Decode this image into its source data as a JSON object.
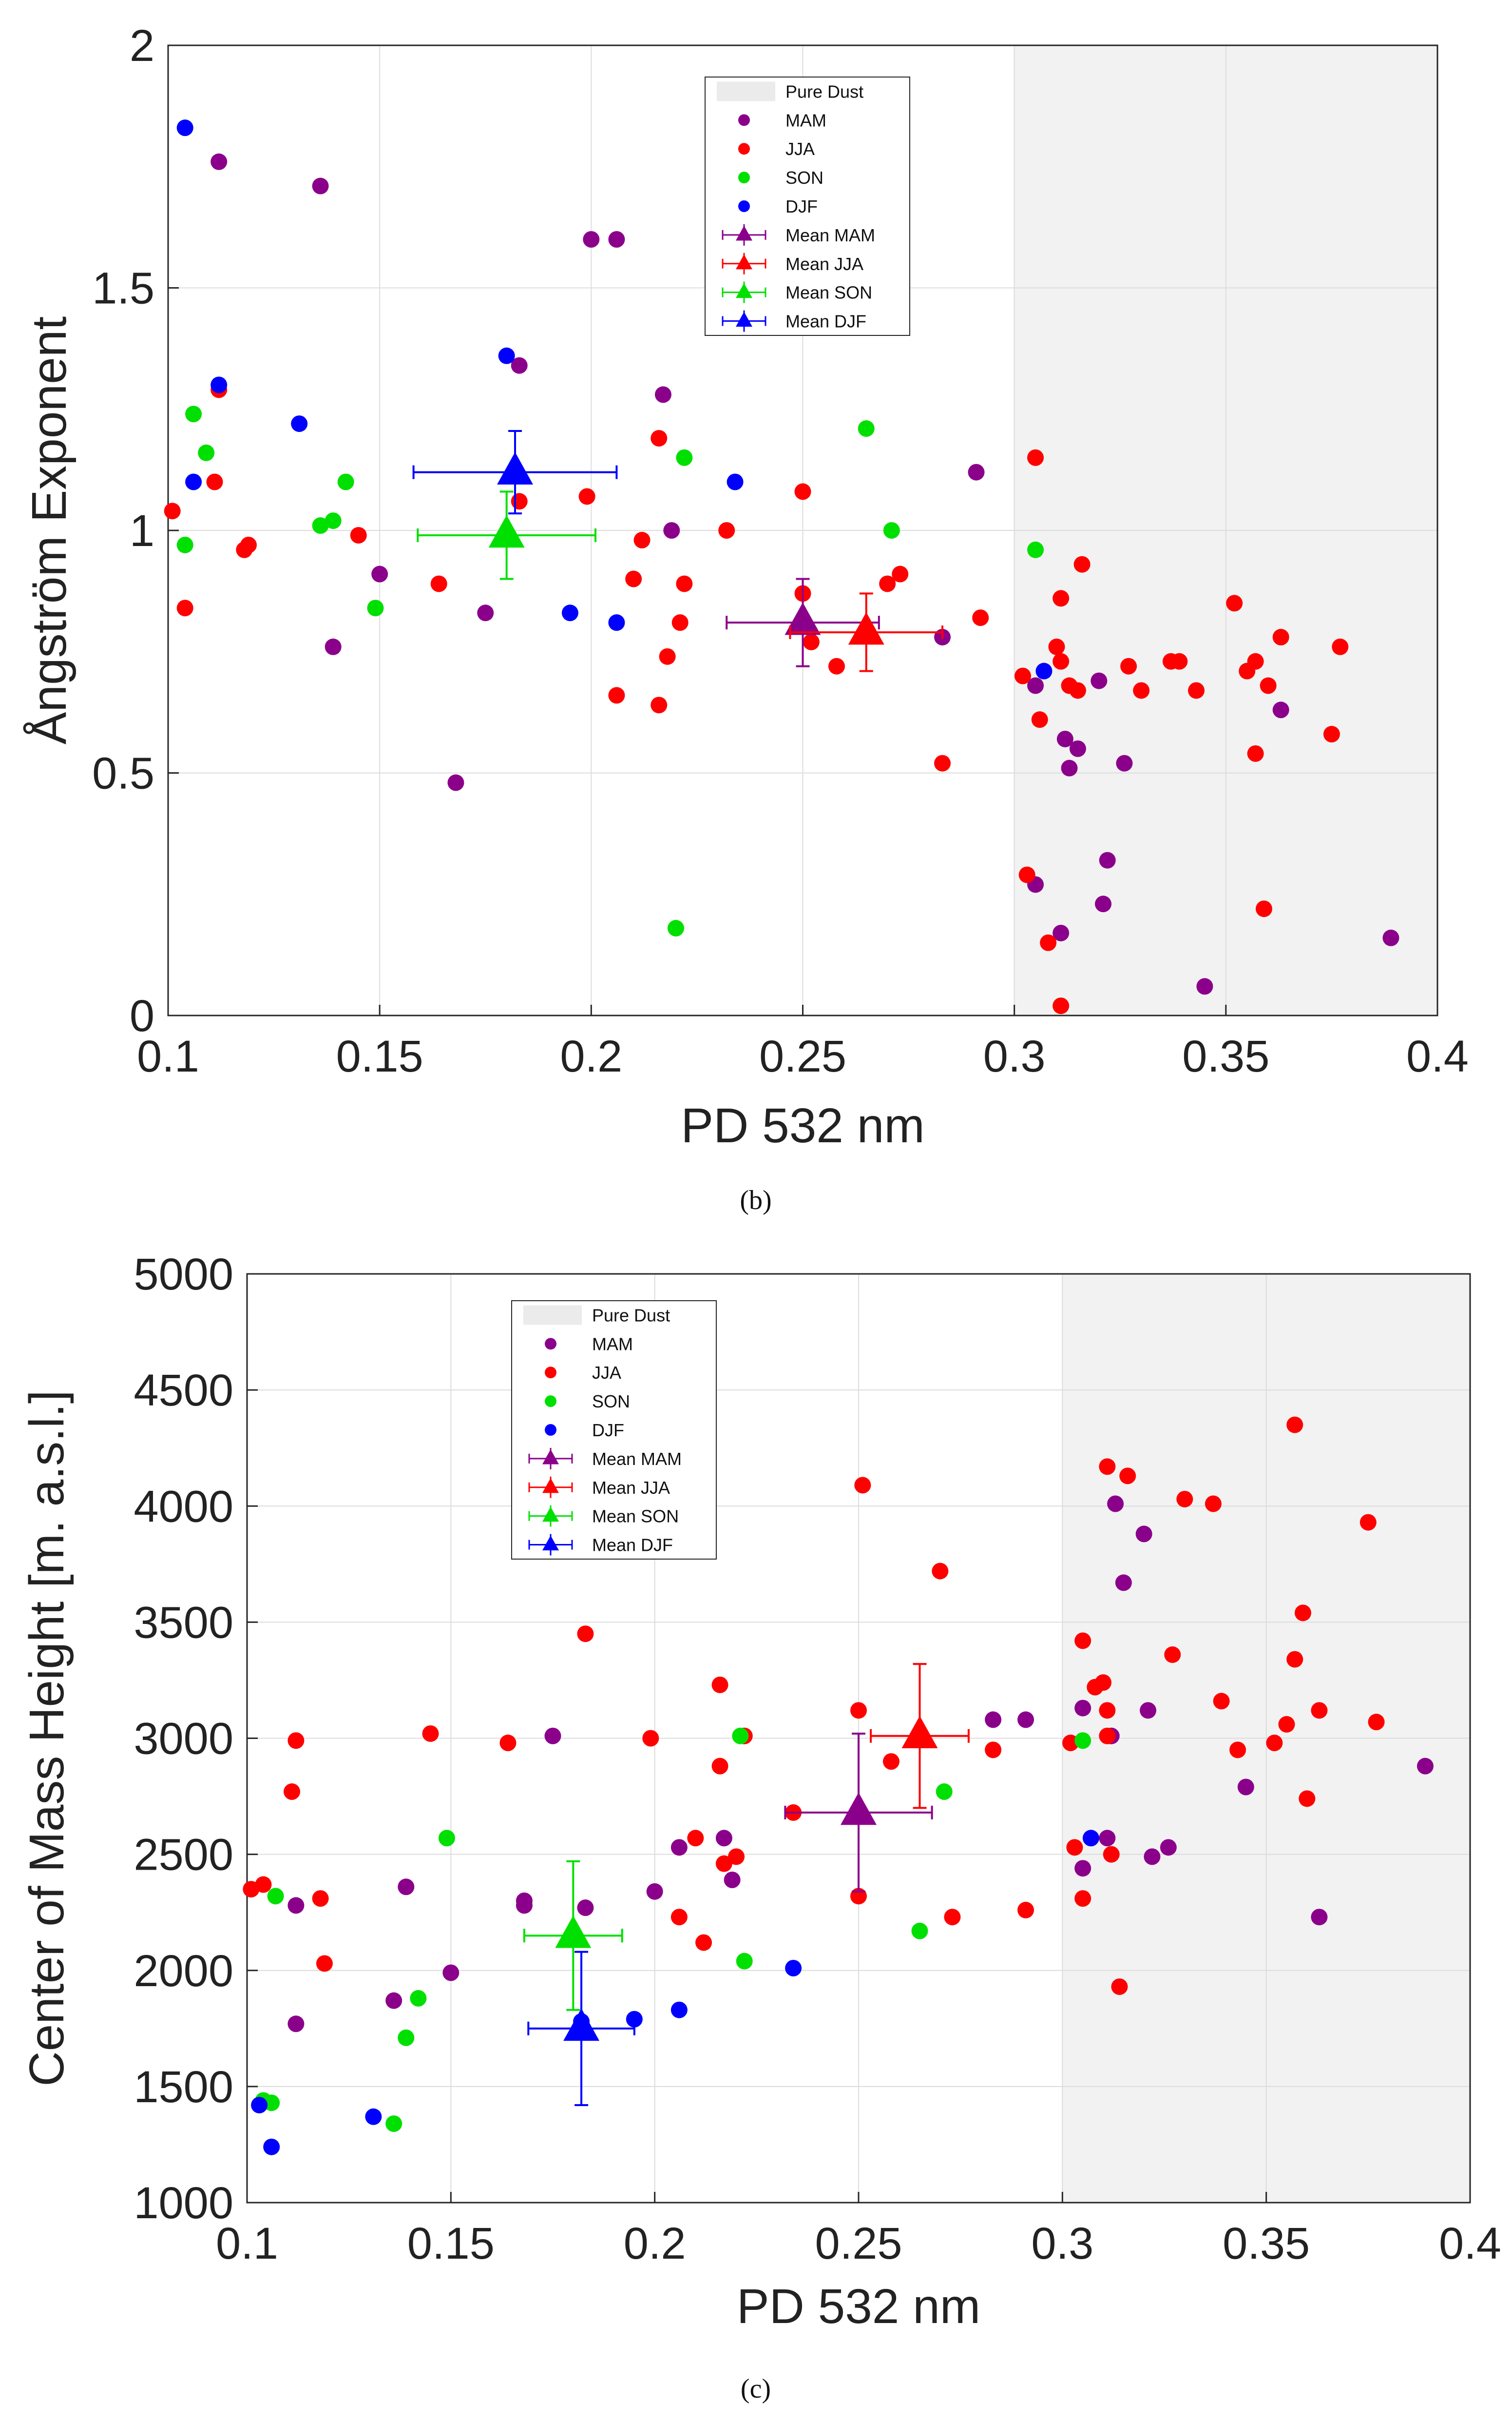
{
  "colors": {
    "MAM": "#8b008b",
    "JJA": "#ff0000",
    "SON": "#00e000",
    "DJF": "#0000ff",
    "pure_dust": "#f2f2f2"
  },
  "chart_data": [
    {
      "id": "b",
      "type": "scatter",
      "panel_label": "(b)",
      "xlabel": "PD 532 nm",
      "ylabel": "Ångström Exponent",
      "xlim": [
        0.1,
        0.4
      ],
      "ylim": [
        0,
        2
      ],
      "xticks": [
        0.1,
        0.15,
        0.2,
        0.25,
        0.3,
        0.35,
        0.4
      ],
      "xtick_labels": [
        "0.1",
        "0.15",
        "0.2",
        "0.25",
        "0.3",
        "0.35",
        "0.4"
      ],
      "yticks": [
        0,
        0.5,
        1,
        1.5,
        2
      ],
      "ytick_labels": [
        "0",
        "0.5",
        "1",
        "1.5",
        "2"
      ],
      "grid": true,
      "legend_position": "top-center",
      "pure_dust_range": [
        0.3,
        0.4
      ],
      "legend": [
        "Pure Dust",
        "MAM",
        "JJA",
        "SON",
        "DJF",
        "Mean MAM",
        "Mean JJA",
        "Mean SON",
        "Mean DJF"
      ],
      "series": [
        {
          "name": "MAM",
          "points": [
            [
              0.112,
              1.76
            ],
            [
              0.136,
              1.71
            ],
            [
              0.2,
              1.6
            ],
            [
              0.206,
              1.6
            ],
            [
              0.183,
              1.34
            ],
            [
              0.217,
              1.28
            ],
            [
              0.291,
              1.12
            ],
            [
              0.219,
              1.0
            ],
            [
              0.15,
              0.91
            ],
            [
              0.175,
              0.83
            ],
            [
              0.139,
              0.76
            ],
            [
              0.168,
              0.48
            ],
            [
              0.283,
              0.78
            ],
            [
              0.305,
              0.68
            ],
            [
              0.32,
              0.69
            ],
            [
              0.312,
              0.57
            ],
            [
              0.315,
              0.55
            ],
            [
              0.313,
              0.51
            ],
            [
              0.326,
              0.52
            ],
            [
              0.363,
              0.63
            ],
            [
              0.305,
              0.27
            ],
            [
              0.322,
              0.32
            ],
            [
              0.321,
              0.23
            ],
            [
              0.311,
              0.17
            ],
            [
              0.389,
              0.16
            ],
            [
              0.345,
              0.06
            ]
          ]
        },
        {
          "name": "JJA",
          "points": [
            [
              0.101,
              1.04
            ],
            [
              0.104,
              0.84
            ],
            [
              0.111,
              1.1
            ],
            [
              0.112,
              1.29
            ],
            [
              0.118,
              0.96
            ],
            [
              0.119,
              0.97
            ],
            [
              0.145,
              0.99
            ],
            [
              0.164,
              0.89
            ],
            [
              0.183,
              1.06
            ],
            [
              0.199,
              1.07
            ],
            [
              0.21,
              0.9
            ],
            [
              0.212,
              0.98
            ],
            [
              0.216,
              1.19
            ],
            [
              0.218,
              0.74
            ],
            [
              0.206,
              0.66
            ],
            [
              0.216,
              0.64
            ],
            [
              0.221,
              0.81
            ],
            [
              0.222,
              0.89
            ],
            [
              0.232,
              1.0
            ],
            [
              0.25,
              1.08
            ],
            [
              0.25,
              0.87
            ],
            [
              0.252,
              0.77
            ],
            [
              0.258,
              0.72
            ],
            [
              0.27,
              0.89
            ],
            [
              0.273,
              0.91
            ],
            [
              0.292,
              0.82
            ],
            [
              0.283,
              0.52
            ],
            [
              0.302,
              0.7
            ],
            [
              0.305,
              1.15
            ],
            [
              0.306,
              0.61
            ],
            [
              0.31,
              0.76
            ],
            [
              0.311,
              0.86
            ],
            [
              0.311,
              0.73
            ],
            [
              0.313,
              0.68
            ],
            [
              0.315,
              0.67
            ],
            [
              0.316,
              0.93
            ],
            [
              0.327,
              0.72
            ],
            [
              0.33,
              0.67
            ],
            [
              0.337,
              0.73
            ],
            [
              0.339,
              0.73
            ],
            [
              0.343,
              0.67
            ],
            [
              0.352,
              0.85
            ],
            [
              0.355,
              0.71
            ],
            [
              0.357,
              0.73
            ],
            [
              0.357,
              0.54
            ],
            [
              0.36,
              0.68
            ],
            [
              0.363,
              0.78
            ],
            [
              0.375,
              0.58
            ],
            [
              0.377,
              0.76
            ],
            [
              0.303,
              0.29
            ],
            [
              0.308,
              0.15
            ],
            [
              0.311,
              0.02
            ],
            [
              0.359,
              0.22
            ]
          ]
        },
        {
          "name": "SON",
          "points": [
            [
              0.104,
              0.97
            ],
            [
              0.106,
              1.24
            ],
            [
              0.109,
              1.16
            ],
            [
              0.136,
              1.01
            ],
            [
              0.139,
              1.02
            ],
            [
              0.142,
              1.1
            ],
            [
              0.149,
              0.84
            ],
            [
              0.222,
              1.15
            ],
            [
              0.265,
              1.21
            ],
            [
              0.271,
              1.0
            ],
            [
              0.305,
              0.96
            ],
            [
              0.22,
              0.18
            ]
          ]
        },
        {
          "name": "DJF",
          "points": [
            [
              0.104,
              1.83
            ],
            [
              0.106,
              1.1
            ],
            [
              0.112,
              1.3
            ],
            [
              0.131,
              1.22
            ],
            [
              0.18,
              1.36
            ],
            [
              0.195,
              0.83
            ],
            [
              0.206,
              0.81
            ],
            [
              0.234,
              1.1
            ],
            [
              0.307,
              0.71
            ]
          ]
        }
      ],
      "means": [
        {
          "name": "Mean MAM",
          "x": 0.25,
          "y": 0.81,
          "xerr": 0.018,
          "yerr": 0.09
        },
        {
          "name": "Mean JJA",
          "x": 0.265,
          "y": 0.79,
          "xerr": 0.018,
          "yerr": 0.08
        },
        {
          "name": "Mean SON",
          "x": 0.18,
          "y": 0.99,
          "xerr": 0.021,
          "yerr": 0.09
        },
        {
          "name": "Mean DJF",
          "x": 0.182,
          "y": 1.12,
          "xerr": 0.024,
          "yerr": 0.085
        }
      ]
    },
    {
      "id": "c",
      "type": "scatter",
      "panel_label": "(c)",
      "xlabel": "PD 532 nm",
      "ylabel": "Center of Mass Height [m. a.s.l.]",
      "xlim": [
        0.1,
        0.4
      ],
      "ylim": [
        1000,
        5000
      ],
      "xticks": [
        0.1,
        0.15,
        0.2,
        0.25,
        0.3,
        0.35,
        0.4
      ],
      "xtick_labels": [
        "0.1",
        "0.15",
        "0.2",
        "0.25",
        "0.3",
        "0.35",
        "0.4"
      ],
      "yticks": [
        1000,
        1500,
        2000,
        2500,
        3000,
        3500,
        4000,
        4500,
        5000
      ],
      "ytick_labels": [
        "1000",
        "1500",
        "2000",
        "2500",
        "3000",
        "3500",
        "4000",
        "4500",
        "5000"
      ],
      "grid": true,
      "legend_position": "top-left",
      "pure_dust_range": [
        0.3,
        0.4
      ],
      "legend": [
        "Pure Dust",
        "MAM",
        "JJA",
        "SON",
        "DJF",
        "Mean MAM",
        "Mean JJA",
        "Mean SON",
        "Mean DJF"
      ],
      "series": [
        {
          "name": "MAM",
          "points": [
            [
              0.112,
              1770
            ],
            [
              0.112,
              2280
            ],
            [
              0.136,
              1870
            ],
            [
              0.139,
              2360
            ],
            [
              0.15,
              1990
            ],
            [
              0.168,
              2280
            ],
            [
              0.168,
              2300
            ],
            [
              0.175,
              3010
            ],
            [
              0.183,
              2270
            ],
            [
              0.2,
              2340
            ],
            [
              0.206,
              2530
            ],
            [
              0.217,
              2570
            ],
            [
              0.219,
              2390
            ],
            [
              0.283,
              3080
            ],
            [
              0.291,
              3080
            ],
            [
              0.305,
              3130
            ],
            [
              0.305,
              2440
            ],
            [
              0.311,
              2570
            ],
            [
              0.312,
              3010
            ],
            [
              0.313,
              4010
            ],
            [
              0.315,
              3670
            ],
            [
              0.32,
              3880
            ],
            [
              0.321,
              3120
            ],
            [
              0.322,
              2490
            ],
            [
              0.326,
              2530
            ],
            [
              0.345,
              2790
            ],
            [
              0.363,
              2230
            ],
            [
              0.389,
              2880
            ]
          ]
        },
        {
          "name": "JJA",
          "points": [
            [
              0.101,
              2350
            ],
            [
              0.104,
              2370
            ],
            [
              0.111,
              2770
            ],
            [
              0.112,
              2990
            ],
            [
              0.118,
              2310
            ],
            [
              0.119,
              2030
            ],
            [
              0.145,
              3020
            ],
            [
              0.164,
              2980
            ],
            [
              0.183,
              3450
            ],
            [
              0.199,
              3000
            ],
            [
              0.206,
              2230
            ],
            [
              0.21,
              2570
            ],
            [
              0.212,
              2120
            ],
            [
              0.216,
              3230
            ],
            [
              0.216,
              2880
            ],
            [
              0.217,
              2460
            ],
            [
              0.22,
              2490
            ],
            [
              0.222,
              3010
            ],
            [
              0.234,
              2680
            ],
            [
              0.25,
              3120
            ],
            [
              0.25,
              2320
            ],
            [
              0.251,
              4090
            ],
            [
              0.258,
              2900
            ],
            [
              0.27,
              3720
            ],
            [
              0.273,
              2230
            ],
            [
              0.283,
              2950
            ],
            [
              0.291,
              2260
            ],
            [
              0.302,
              2980
            ],
            [
              0.303,
              2530
            ],
            [
              0.305,
              3420
            ],
            [
              0.305,
              2310
            ],
            [
              0.308,
              3220
            ],
            [
              0.31,
              3240
            ],
            [
              0.311,
              4170
            ],
            [
              0.311,
              3120
            ],
            [
              0.311,
              3010
            ],
            [
              0.312,
              2500
            ],
            [
              0.314,
              1930
            ],
            [
              0.316,
              4130
            ],
            [
              0.327,
              3360
            ],
            [
              0.33,
              4030
            ],
            [
              0.337,
              4010
            ],
            [
              0.339,
              3160
            ],
            [
              0.343,
              2950
            ],
            [
              0.352,
              2980
            ],
            [
              0.355,
              3060
            ],
            [
              0.357,
              3340
            ],
            [
              0.357,
              4350
            ],
            [
              0.359,
              3540
            ],
            [
              0.36,
              2740
            ],
            [
              0.363,
              3120
            ],
            [
              0.375,
              3930
            ],
            [
              0.377,
              3070
            ]
          ]
        },
        {
          "name": "SON",
          "points": [
            [
              0.104,
              1440
            ],
            [
              0.106,
              1430
            ],
            [
              0.107,
              2320
            ],
            [
              0.136,
              1340
            ],
            [
              0.139,
              1710
            ],
            [
              0.142,
              1880
            ],
            [
              0.149,
              2570
            ],
            [
              0.221,
              3010
            ],
            [
              0.222,
              2040
            ],
            [
              0.265,
              2170
            ],
            [
              0.271,
              2770
            ],
            [
              0.305,
              2990
            ]
          ]
        },
        {
          "name": "DJF",
          "points": [
            [
              0.103,
              1420
            ],
            [
              0.106,
              1240
            ],
            [
              0.131,
              1370
            ],
            [
              0.182,
              1780
            ],
            [
              0.195,
              1790
            ],
            [
              0.206,
              1830
            ],
            [
              0.234,
              2010
            ],
            [
              0.307,
              2570
            ]
          ]
        }
      ],
      "means": [
        {
          "name": "Mean MAM",
          "x": 0.25,
          "y": 2680,
          "xerr": 0.018,
          "yerr": 340
        },
        {
          "name": "Mean JJA",
          "x": 0.265,
          "y": 3010,
          "xerr": 0.012,
          "yerr": 310
        },
        {
          "name": "Mean SON",
          "x": 0.18,
          "y": 2150,
          "xerr": 0.012,
          "yerr": 320
        },
        {
          "name": "Mean DJF",
          "x": 0.182,
          "y": 1750,
          "xerr": 0.013,
          "yerr": 330
        }
      ]
    }
  ]
}
